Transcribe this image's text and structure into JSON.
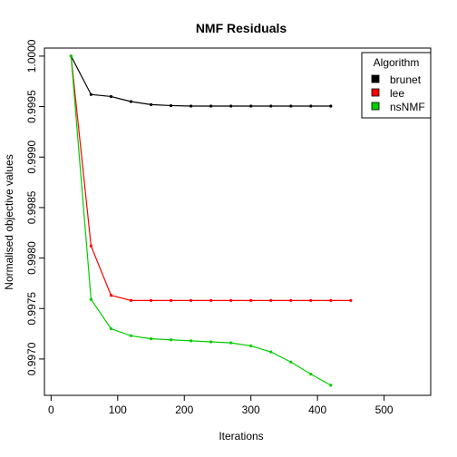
{
  "chart_data": {
    "type": "line",
    "title": "NMF Residuals",
    "xlabel": "Iterations",
    "ylabel": "Normalised objective values",
    "xlim": [
      -10,
      570
    ],
    "ylim": [
      0.99664,
      1.00008
    ],
    "xticks": [
      0,
      100,
      200,
      300,
      400,
      500
    ],
    "xtick_labels": [
      "0",
      "100",
      "200",
      "300",
      "400",
      "500"
    ],
    "yticks": [
      0.997,
      0.9975,
      0.998,
      0.9985,
      0.999,
      0.9995,
      1.0
    ],
    "ytick_labels": [
      "0.9970",
      "0.9975",
      "0.9980",
      "0.9985",
      "0.9990",
      "0.9995",
      "1.0000"
    ],
    "grid": false,
    "legend": {
      "title": "Algorithm",
      "position": "top-right"
    },
    "series": [
      {
        "name": "brunet",
        "color": "#000000",
        "x": [
          30,
          60,
          90,
          120,
          150,
          180,
          210,
          240,
          270,
          300,
          330,
          360,
          390,
          420
        ],
        "y": [
          1.0,
          0.99962,
          0.9996,
          0.99955,
          0.99952,
          0.99951,
          0.999505,
          0.999505,
          0.999505,
          0.999505,
          0.999505,
          0.999505,
          0.999505,
          0.999505
        ]
      },
      {
        "name": "lee",
        "color": "#ff0000",
        "x": [
          30,
          60,
          90,
          120,
          150,
          180,
          210,
          240,
          270,
          300,
          330,
          360,
          390,
          420,
          450
        ],
        "y": [
          1.0,
          0.99812,
          0.99763,
          0.99758,
          0.99758,
          0.99758,
          0.99758,
          0.99758,
          0.99758,
          0.99758,
          0.99758,
          0.99758,
          0.99758,
          0.99758,
          0.99758
        ]
      },
      {
        "name": "nsNMF",
        "color": "#00cd00",
        "x": [
          30,
          60,
          90,
          120,
          150,
          180,
          210,
          240,
          270,
          300,
          330,
          360,
          390,
          420
        ],
        "y": [
          1.0,
          0.99759,
          0.9973,
          0.99723,
          0.9972,
          0.99719,
          0.99718,
          0.99717,
          0.99716,
          0.99713,
          0.99707,
          0.99697,
          0.99685,
          0.99674
        ]
      }
    ]
  }
}
